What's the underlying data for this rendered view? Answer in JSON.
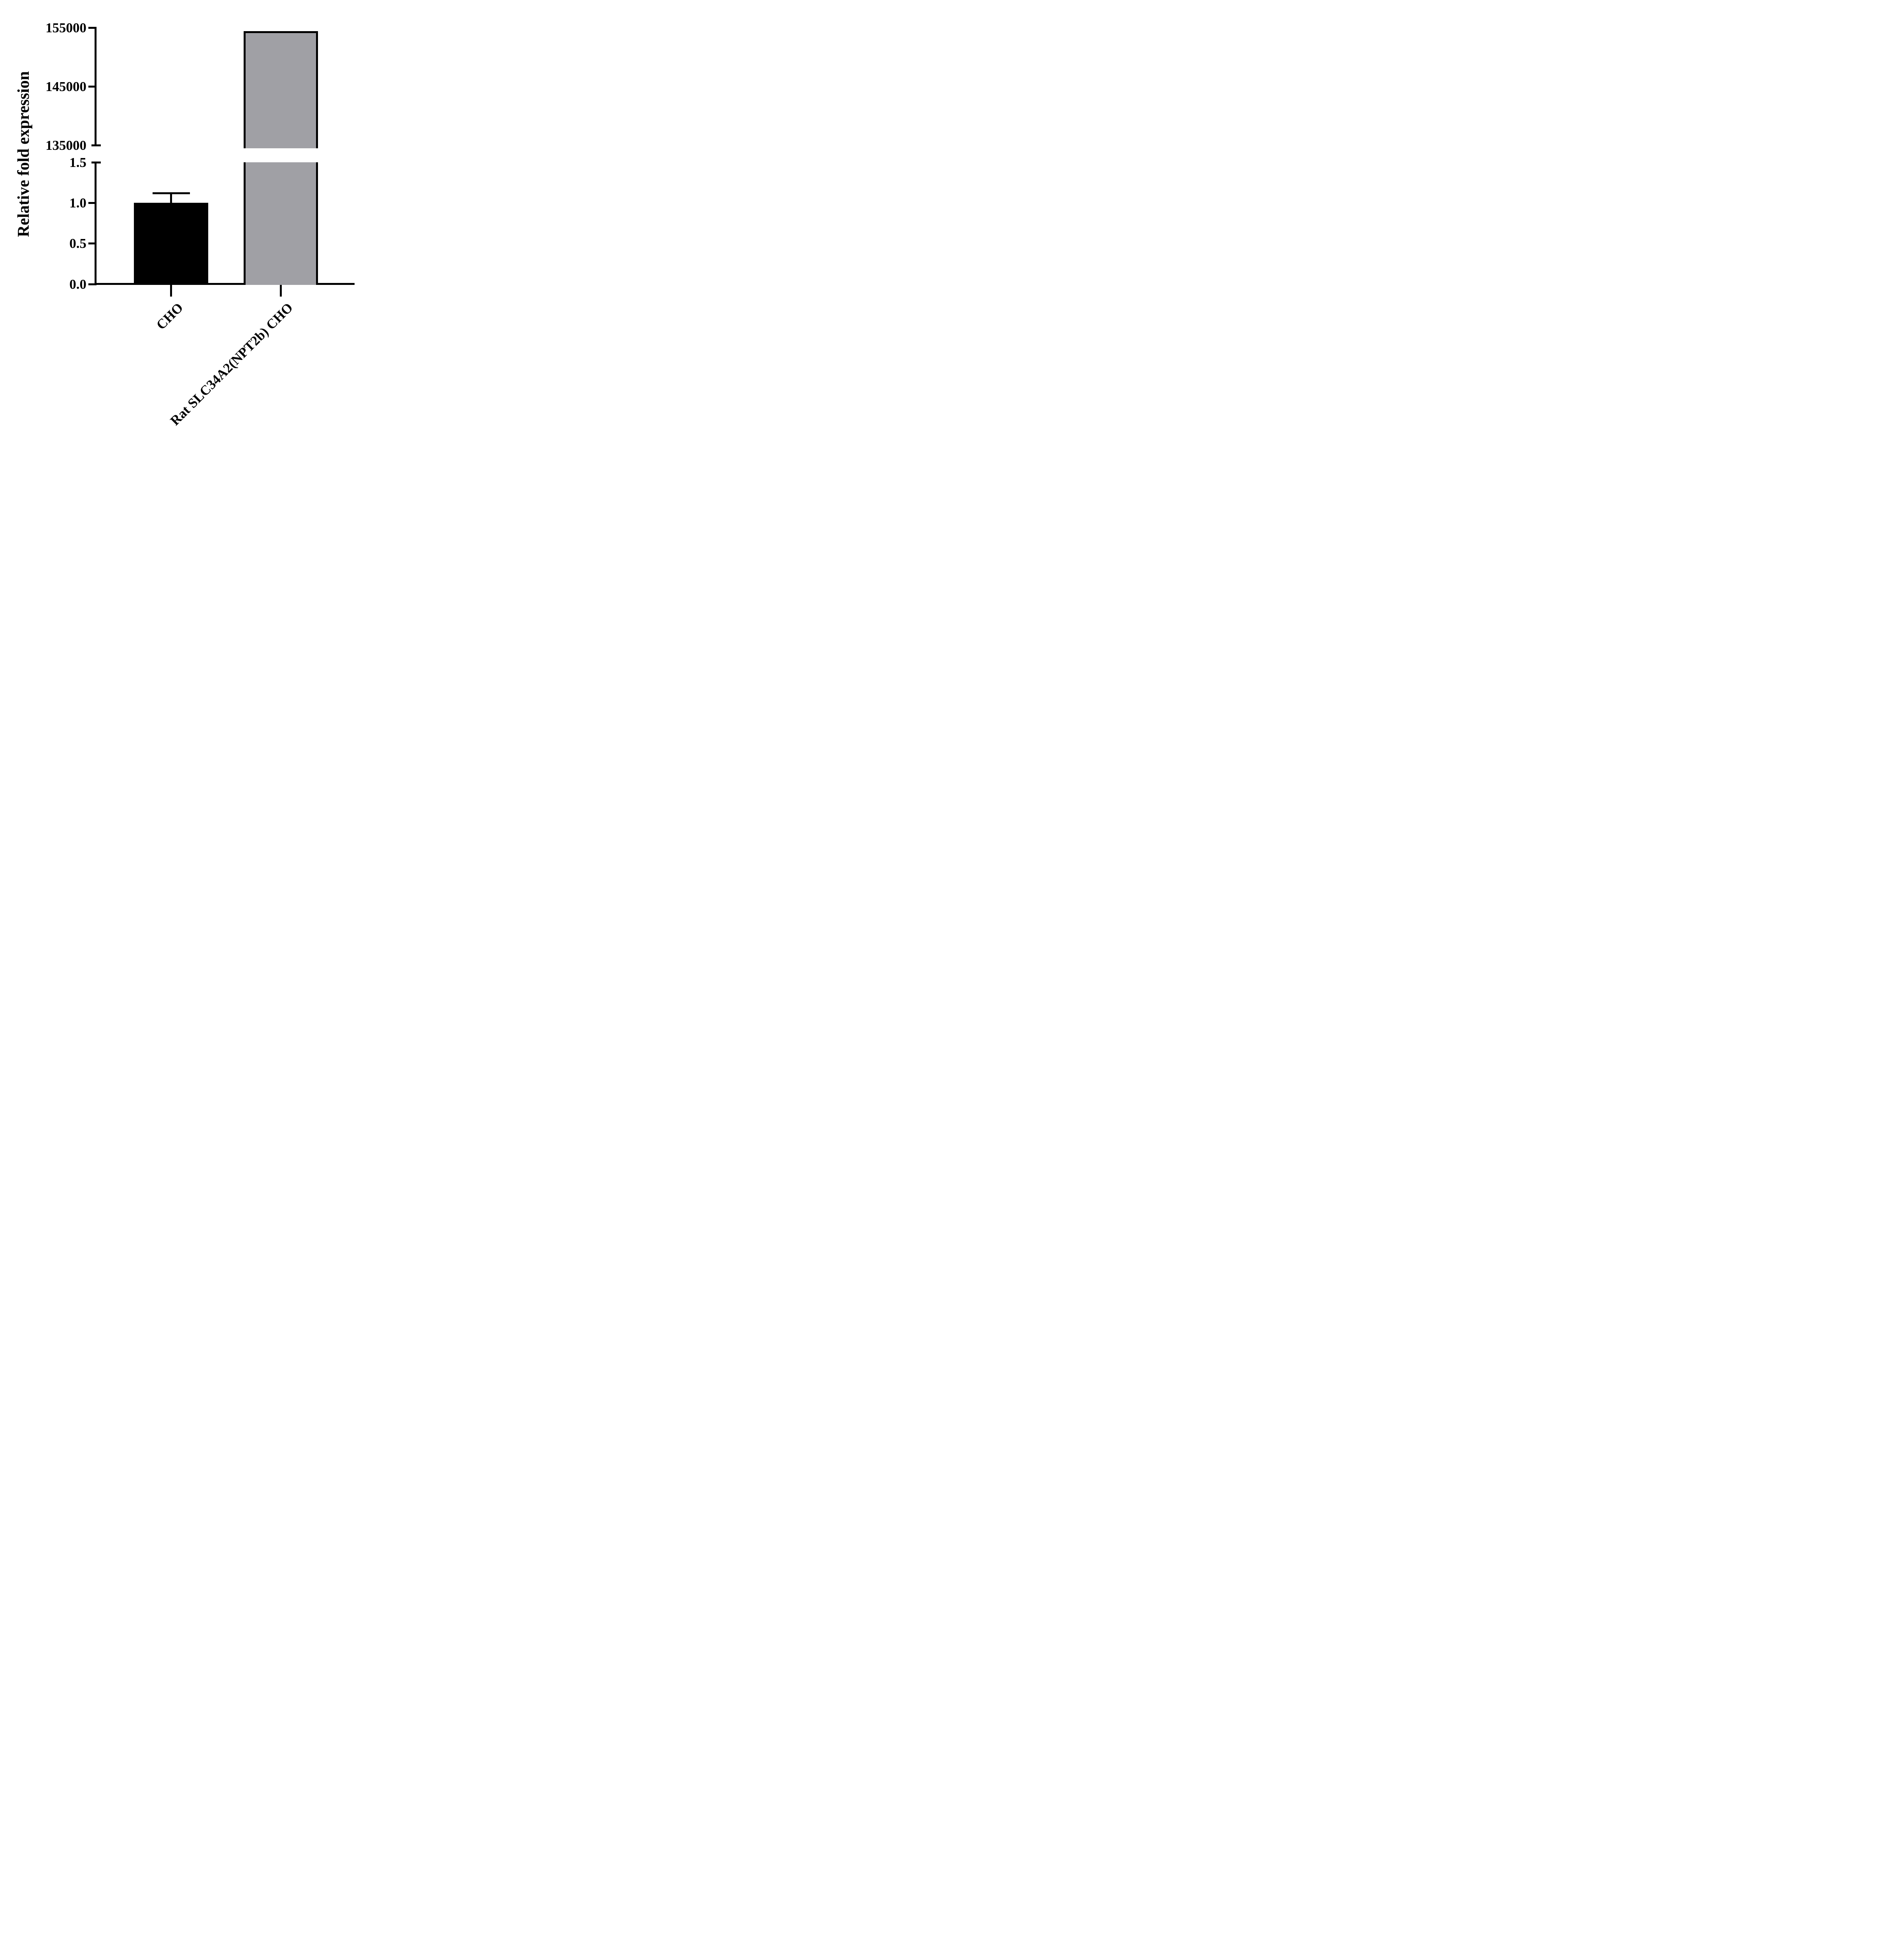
{
  "page": {
    "background": "#FFFFFF"
  },
  "chart_data": {
    "type": "bar",
    "title": "",
    "ylabel": "Relative fold expression",
    "xlabel": "",
    "categories": [
      "CHO",
      "Rat SLC34A2(NPT2b) CHO"
    ],
    "series": [
      {
        "name": "Relative fold expression",
        "values": [
          1.0,
          154400
        ],
        "errors_plus": [
          0.12,
          null
        ],
        "bar_colors": [
          "#000000",
          "#A0A0A5"
        ]
      }
    ],
    "bar_border_color": "#000000",
    "axis_color": "#000000",
    "background_color": "#FFFFFF",
    "axis_break": true,
    "panels": [
      {
        "position": "upper",
        "range": [
          135000,
          155000
        ],
        "ticks": [
          155000,
          145000,
          135000
        ],
        "tick_labels": [
          "155000",
          "145000",
          "135000"
        ]
      },
      {
        "position": "lower",
        "range": [
          0,
          1.5
        ],
        "ticks": [
          1.5,
          1.0,
          0.5,
          0.0
        ],
        "tick_labels": [
          "1.5",
          "1.0",
          "0.5",
          "0.0"
        ]
      }
    ],
    "x_tick_label_rotation_deg": -45,
    "grid": false,
    "legend": false
  }
}
